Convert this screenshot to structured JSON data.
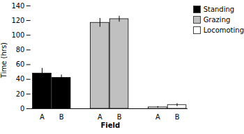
{
  "chart_data": {
    "type": "bar",
    "xlabel": "Field",
    "ylabel": "Time (hrs)",
    "categories": [
      "A",
      "B"
    ],
    "series": [
      {
        "name": "Standing",
        "color": "#000000",
        "values": [
          48,
          42
        ],
        "errors": [
          7,
          4
        ]
      },
      {
        "name": "Grazing",
        "color": "#c0c0c0",
        "values": [
          117,
          122
        ],
        "errors": [
          6,
          4
        ]
      },
      {
        "name": "Locomoting",
        "color": "#ffffff",
        "values": [
          2,
          5
        ],
        "errors": [
          1,
          2
        ]
      }
    ],
    "ylim": [
      0,
      140
    ],
    "yticks": [
      0,
      20,
      40,
      60,
      80,
      100,
      120,
      140
    ],
    "legend": "right"
  }
}
